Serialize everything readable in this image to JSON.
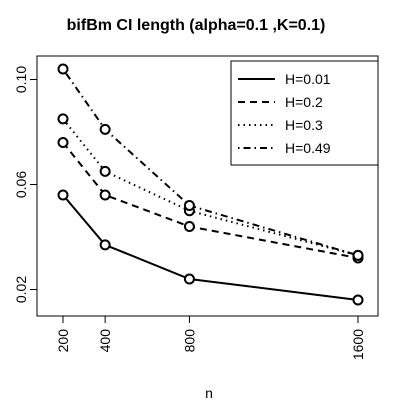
{
  "chart_data": {
    "type": "line",
    "title": "bifBm CI length (alpha=0.1 ,K=0.1)",
    "xlabel": "n",
    "ylabel": "",
    "x": [
      200,
      400,
      800,
      1600
    ],
    "x_tick_labels": [
      "200",
      "400",
      "800",
      "1600"
    ],
    "y_ticks": [
      0.02,
      0.06,
      0.1
    ],
    "y_tick_labels": [
      "0.02",
      "0.06",
      "0.10"
    ],
    "xlim": [
      200,
      1600
    ],
    "ylim": [
      0.016,
      0.104
    ],
    "grid": false,
    "legend_position": "top-right",
    "series": [
      {
        "name": "H=0.01",
        "values": [
          0.056,
          0.037,
          0.024,
          0.016
        ],
        "line_style": "solid"
      },
      {
        "name": "H=0.2",
        "values": [
          0.076,
          0.056,
          0.044,
          0.032
        ],
        "line_style": "dashed"
      },
      {
        "name": "H=0.3",
        "values": [
          0.085,
          0.065,
          0.05,
          0.033
        ],
        "line_style": "dotted"
      },
      {
        "name": "H=0.49",
        "values": [
          0.104,
          0.081,
          0.052,
          0.033
        ],
        "line_style": "dotdash"
      }
    ],
    "colors": {
      "line": "#000000",
      "background": "#ffffff"
    }
  }
}
